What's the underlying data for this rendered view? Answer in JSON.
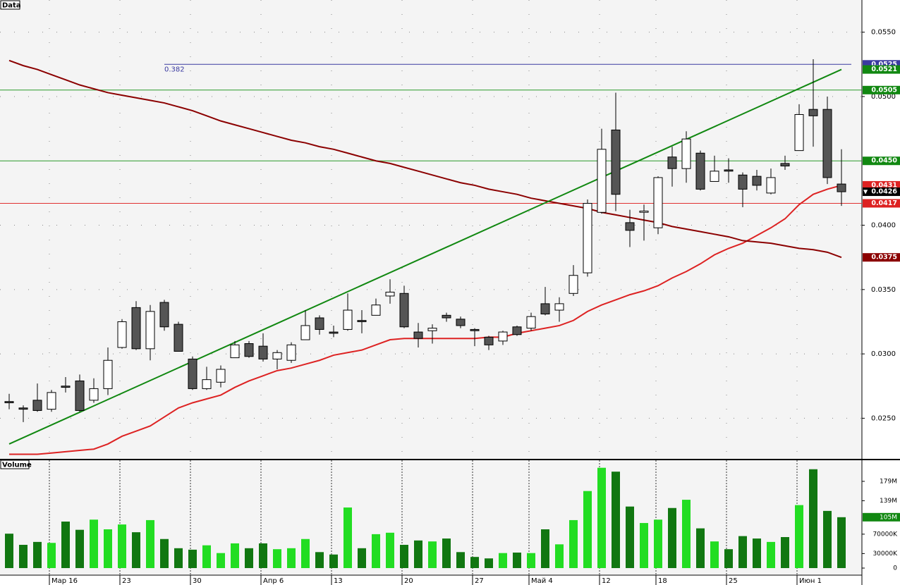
{
  "chart_data": {
    "type": "candlestick",
    "panel_labels": [
      "Data",
      "Volume"
    ],
    "categories": [
      null,
      null,
      null,
      "Мар 16",
      null,
      null,
      null,
      null,
      "23",
      null,
      null,
      null,
      null,
      "30",
      null,
      null,
      null,
      null,
      "Апр 6",
      null,
      null,
      null,
      null,
      "13",
      null,
      null,
      null,
      null,
      "20",
      null,
      null,
      null,
      null,
      "27",
      null,
      null,
      null,
      "Май 4",
      null,
      null,
      null,
      null,
      "12",
      null,
      null,
      null,
      "18",
      null,
      null,
      null,
      null,
      "25",
      null,
      null,
      null,
      null,
      "Июн 1",
      null,
      null,
      null
    ],
    "ohlc": {
      "open": [
        0.0263,
        0.0258,
        0.0264,
        0.0257,
        0.0275,
        0.0279,
        0.0264,
        0.0273,
        0.0305,
        0.0336,
        0.0304,
        0.034,
        0.0323,
        0.0296,
        0.0273,
        0.0278,
        0.0297,
        0.0308,
        0.0306,
        0.0296,
        0.0295,
        0.0311,
        0.0328,
        0.0317,
        0.0319,
        0.0326,
        0.033,
        0.0345,
        0.0347,
        0.0317,
        0.0318,
        0.033,
        0.0327,
        0.0319,
        0.0313,
        0.031,
        0.0321,
        0.032,
        0.0339,
        0.0334,
        0.0347,
        0.0363,
        0.041,
        0.0474,
        0.0402,
        0.041,
        0.0398,
        0.0453,
        0.0444,
        0.0456,
        0.0434,
        0.0443,
        0.0439,
        0.0438,
        0.0425,
        0.0448,
        0.0458,
        0.049,
        0.049,
        0.0432
      ],
      "high": [
        0.0269,
        0.026,
        0.0277,
        0.0272,
        0.0282,
        0.0284,
        0.0281,
        0.0305,
        0.0327,
        0.0341,
        0.0338,
        0.0342,
        0.0325,
        0.0298,
        0.029,
        0.0291,
        0.031,
        0.031,
        0.0316,
        0.0303,
        0.0309,
        0.0334,
        0.033,
        0.0322,
        0.0347,
        0.0334,
        0.0343,
        0.0358,
        0.0353,
        0.0324,
        0.0323,
        0.0332,
        0.0329,
        0.032,
        0.0314,
        0.0318,
        0.0322,
        0.0332,
        0.0352,
        0.0344,
        0.0369,
        0.042,
        0.0475,
        0.0503,
        0.0412,
        0.0416,
        0.0438,
        0.0461,
        0.0473,
        0.0458,
        0.0454,
        0.0452,
        0.0441,
        0.0443,
        0.0444,
        0.0454,
        0.0494,
        0.0529,
        0.05,
        0.0459
      ],
      "low": [
        0.0257,
        0.0247,
        0.0255,
        0.0255,
        0.027,
        0.0255,
        0.0262,
        0.0268,
        0.0304,
        0.0303,
        0.0295,
        0.0318,
        0.0302,
        0.0272,
        0.0272,
        0.0274,
        0.0297,
        0.0297,
        0.0294,
        0.0288,
        0.0293,
        0.0311,
        0.0315,
        0.0313,
        0.0318,
        0.0316,
        0.033,
        0.0339,
        0.032,
        0.0305,
        0.0308,
        0.0325,
        0.032,
        0.0306,
        0.0303,
        0.0307,
        0.0314,
        0.0318,
        0.033,
        0.0325,
        0.0345,
        0.036,
        0.0409,
        0.0411,
        0.0383,
        0.0388,
        0.0393,
        0.043,
        0.0433,
        0.0427,
        0.0434,
        0.0433,
        0.0414,
        0.0427,
        0.0424,
        0.0443,
        0.0458,
        0.0461,
        0.0432,
        0.0415
      ],
      "close": [
        0.0262,
        0.0257,
        0.0256,
        0.027,
        0.0274,
        0.0256,
        0.0273,
        0.0295,
        0.0325,
        0.0304,
        0.0333,
        0.0321,
        0.0302,
        0.0273,
        0.028,
        0.0288,
        0.0307,
        0.0298,
        0.0296,
        0.0301,
        0.0307,
        0.0322,
        0.0319,
        0.0316,
        0.0334,
        0.0325,
        0.0338,
        0.0348,
        0.0321,
        0.0312,
        0.032,
        0.0328,
        0.0322,
        0.0318,
        0.0307,
        0.0317,
        0.0315,
        0.0329,
        0.0331,
        0.0339,
        0.0361,
        0.0417,
        0.0459,
        0.0424,
        0.0396,
        0.0411,
        0.0437,
        0.0444,
        0.0467,
        0.0428,
        0.0442,
        0.0442,
        0.0428,
        0.0431,
        0.0437,
        0.0446,
        0.0486,
        0.0485,
        0.0437,
        0.0426
      ],
      "up_color": "#ffffff",
      "down_color": "#555555"
    },
    "lines": [
      {
        "color": "#dd2222",
        "values": [
          0.0222,
          0.0222,
          0.0222,
          0.0223,
          0.0224,
          0.0225,
          0.0226,
          0.023,
          0.0236,
          0.024,
          0.0244,
          0.0251,
          0.0258,
          0.0262,
          0.0265,
          0.0268,
          0.0274,
          0.0279,
          0.0283,
          0.0287,
          0.0289,
          0.0292,
          0.0295,
          0.0299,
          0.0301,
          0.0303,
          0.0307,
          0.0311,
          0.0312,
          0.0312,
          0.0312,
          0.0312,
          0.0312,
          0.0312,
          0.0313,
          0.0313,
          0.0316,
          0.0318,
          0.032,
          0.0322,
          0.0326,
          0.0333,
          0.0338,
          0.0342,
          0.0346,
          0.0349,
          0.0353,
          0.0359,
          0.0364,
          0.037,
          0.0377,
          0.0382,
          0.0386,
          0.0392,
          0.0398,
          0.0405,
          0.0416,
          0.0424,
          0.0428,
          0.0431
        ]
      },
      {
        "color": "#8b0000",
        "values": [
          0.0528,
          0.0524,
          0.0521,
          0.0517,
          0.0513,
          0.0509,
          0.0506,
          0.0503,
          0.0501,
          0.0499,
          0.0497,
          0.0495,
          0.0492,
          0.0489,
          0.0485,
          0.0481,
          0.0478,
          0.0475,
          0.0472,
          0.0469,
          0.0466,
          0.0464,
          0.0461,
          0.0459,
          0.0456,
          0.0453,
          0.045,
          0.0448,
          0.0445,
          0.0442,
          0.0439,
          0.0436,
          0.0433,
          0.0431,
          0.0428,
          0.0426,
          0.0424,
          0.0421,
          0.0419,
          0.0417,
          0.0415,
          0.0413,
          0.041,
          0.0408,
          0.0406,
          0.0404,
          0.0402,
          0.0399,
          0.0397,
          0.0395,
          0.0393,
          0.0391,
          0.0388,
          0.0387,
          0.0386,
          0.0384,
          0.0382,
          0.0381,
          0.0379,
          0.0375
        ]
      }
    ],
    "trendline": {
      "color": "#118811",
      "values": [
        0.023,
        0.0521
      ]
    },
    "levels": [
      {
        "value": 0.0505,
        "color": "#2a9a2a"
      },
      {
        "value": 0.045,
        "color": "#2a9a2a"
      },
      {
        "value": 0.0417,
        "color": "#e03030"
      }
    ],
    "fib": {
      "label": "0.382",
      "value": 0.0525,
      "color": "#3a3aa0"
    },
    "ylim": [
      0.0219,
      0.0575
    ],
    "yticks": [
      {
        "value": 0.025,
        "label": "0.0250"
      },
      {
        "value": 0.03,
        "label": "0.0300"
      },
      {
        "value": 0.035,
        "label": "0.0350"
      },
      {
        "value": 0.04,
        "label": "0.0400"
      },
      {
        "value": 0.05,
        "label": "0.0500"
      },
      {
        "value": 0.055,
        "label": "0.0550"
      }
    ],
    "axis_badges": [
      {
        "value": 0.0525,
        "label": "0.0525",
        "color": "#3a3aa0"
      },
      {
        "value": 0.0521,
        "label": "0.0521",
        "color": "#118811"
      },
      {
        "value": 0.0505,
        "label": "0.0505",
        "color": "#118811"
      },
      {
        "value": 0.045,
        "label": "0.0450",
        "color": "#118811"
      },
      {
        "value": 0.0431,
        "label": "0.0431",
        "color": "#dd2222"
      },
      {
        "value": 0.0426,
        "label": "0.0426",
        "color": "#000000",
        "marker": "▼"
      },
      {
        "value": 0.0417,
        "label": "0.0417",
        "color": "#dd2222"
      },
      {
        "value": 0.0375,
        "label": "0.0375",
        "color": "#8b0000"
      }
    ],
    "volume": {
      "values": [
        71000000,
        48000000,
        54000000,
        52000000,
        96000000,
        79000000,
        100000000,
        80000000,
        90000000,
        74000000,
        99000000,
        60000000,
        41000000,
        38000000,
        47000000,
        31000000,
        51000000,
        41000000,
        51000000,
        39000000,
        41000000,
        60000000,
        33000000,
        28000000,
        125000000,
        41000000,
        70000000,
        73000000,
        48000000,
        57000000,
        55000000,
        61000000,
        33000000,
        23000000,
        20000000,
        31000000,
        32000000,
        31000000,
        80000000,
        49000000,
        99000000,
        159000000,
        207000000,
        199000000,
        127000000,
        93000000,
        100000000,
        124000000,
        141000000,
        82000000,
        55000000,
        39000000,
        66000000,
        61000000,
        54000000,
        64000000,
        130000000,
        204000000,
        118000000,
        105000000
      ],
      "up_color": "#22dd22",
      "down_color": "#117711",
      "ylim": [
        0,
        224000000
      ],
      "yticks": [
        0,
        {
          "value": 30000000,
          "label": "30000K"
        },
        {
          "value": 70000000,
          "label": "70000K"
        },
        {
          "value": 139000000,
          "label": "139M"
        },
        {
          "value": 179000000,
          "label": "179M"
        }
      ],
      "badge": {
        "value": 105000000,
        "label": "105M",
        "color": "#118811"
      }
    }
  }
}
